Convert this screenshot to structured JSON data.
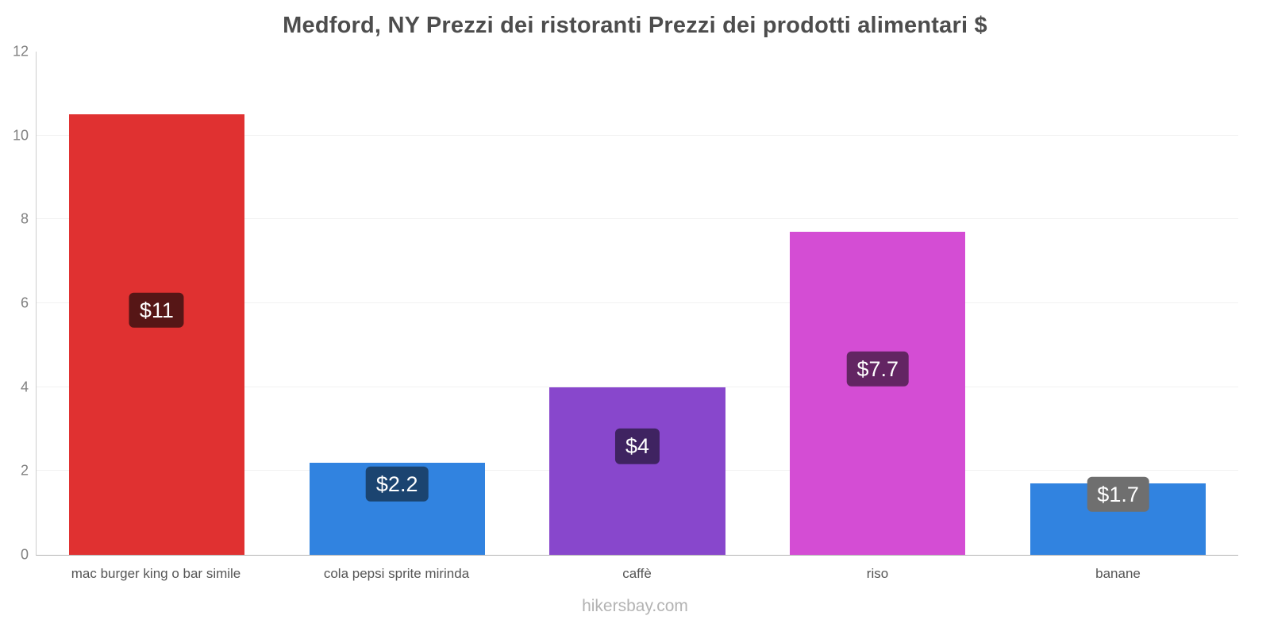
{
  "chart_data": {
    "type": "bar",
    "title": "Medford, NY Prezzi dei ristoranti Prezzi dei prodotti alimentari $",
    "categories": [
      "mac burger king o bar simile",
      "cola pepsi sprite mirinda",
      "caffè",
      "riso",
      "banane"
    ],
    "values": [
      10.5,
      2.2,
      4,
      7.7,
      1.7
    ],
    "value_labels": [
      "$11",
      "$2.2",
      "$4",
      "$7.7",
      "$1.7"
    ],
    "bar_colors": [
      "#e03131",
      "#3183e0",
      "#8847cc",
      "#d44dd4",
      "#3183e0"
    ],
    "label_bg_colors": [
      "#561616",
      "#1b4470",
      "#3f2361",
      "#632563",
      "#6f6f6f"
    ],
    "ylim": [
      0,
      12
    ],
    "yticks": [
      0,
      2,
      4,
      6,
      8,
      10,
      12
    ],
    "grid": true,
    "legend": false,
    "xlabel": "",
    "ylabel": ""
  },
  "footer": {
    "watermark": "hikersbay.com"
  }
}
